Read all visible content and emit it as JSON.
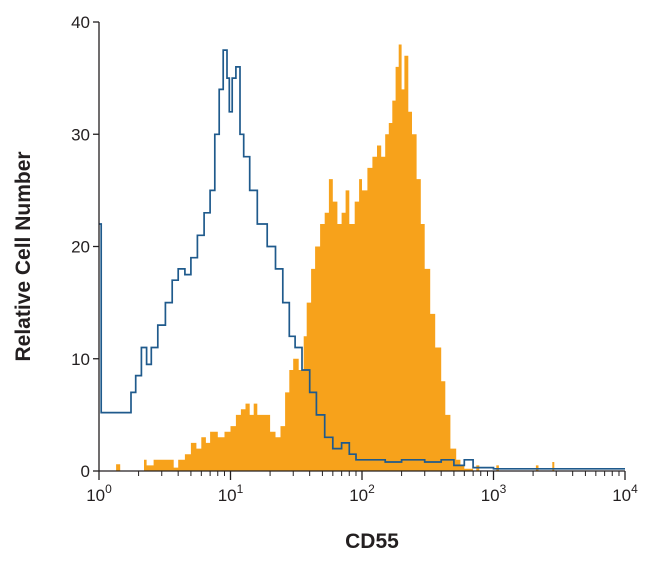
{
  "chart_data": {
    "type": "area",
    "xlabel": "CD55",
    "ylabel": "Relative Cell Number",
    "xscale": "log",
    "xlim": [
      1,
      10000
    ],
    "ylim": [
      0,
      40
    ],
    "grid": false,
    "y_ticks": [
      0,
      10,
      20,
      30,
      40
    ],
    "x_ticks": [
      {
        "base": "10",
        "exp": "0"
      },
      {
        "base": "10",
        "exp": "1"
      },
      {
        "base": "10",
        "exp": "2"
      },
      {
        "base": "10",
        "exp": "3"
      },
      {
        "base": "10",
        "exp": "4"
      }
    ],
    "series": [
      {
        "style": "outline",
        "color": "#1f5a8c",
        "points": [
          [
            1.0,
            22
          ],
          [
            1.04,
            5.2
          ],
          [
            1.6,
            5.2
          ],
          [
            1.75,
            7
          ],
          [
            1.9,
            8.5
          ],
          [
            2.1,
            11
          ],
          [
            2.3,
            9.5
          ],
          [
            2.5,
            11
          ],
          [
            2.8,
            13
          ],
          [
            3.2,
            15
          ],
          [
            3.6,
            17
          ],
          [
            4.0,
            18
          ],
          [
            4.5,
            17.5
          ],
          [
            5.0,
            19
          ],
          [
            5.6,
            21
          ],
          [
            6.3,
            23
          ],
          [
            7.0,
            25
          ],
          [
            7.6,
            30
          ],
          [
            8.2,
            34
          ],
          [
            8.8,
            37.5
          ],
          [
            9.4,
            35
          ],
          [
            9.8,
            32
          ],
          [
            10.3,
            35
          ],
          [
            11.0,
            36
          ],
          [
            11.8,
            30
          ],
          [
            12.6,
            28
          ],
          [
            14.0,
            25
          ],
          [
            16.0,
            22
          ],
          [
            19.0,
            20
          ],
          [
            22.0,
            18
          ],
          [
            25.0,
            15
          ],
          [
            28.0,
            12
          ],
          [
            31.0,
            11
          ],
          [
            35.0,
            9
          ],
          [
            40.0,
            7
          ],
          [
            45.0,
            5
          ],
          [
            52.0,
            3
          ],
          [
            60.0,
            2
          ],
          [
            70.0,
            2.5
          ],
          [
            80.0,
            1.5
          ],
          [
            90.0,
            1
          ],
          [
            110.0,
            1
          ],
          [
            150.0,
            0.8
          ],
          [
            200.0,
            1
          ],
          [
            300.0,
            0.8
          ],
          [
            400.0,
            1
          ],
          [
            500.0,
            0.5
          ],
          [
            600.0,
            1
          ],
          [
            700.0,
            0.3
          ],
          [
            1000.0,
            0.2
          ],
          [
            2000.0,
            0.2
          ],
          [
            10000.0,
            0.2
          ]
        ]
      },
      {
        "style": "filled",
        "color": "#f7a21b",
        "points": [
          [
            1.0,
            0
          ],
          [
            1.3,
            0
          ],
          [
            1.35,
            0.6
          ],
          [
            1.45,
            0
          ],
          [
            2.1,
            0
          ],
          [
            2.2,
            1
          ],
          [
            2.3,
            0.5
          ],
          [
            2.6,
            1
          ],
          [
            2.9,
            1
          ],
          [
            3.3,
            1
          ],
          [
            3.7,
            0.3
          ],
          [
            4.0,
            1
          ],
          [
            4.5,
            1.5
          ],
          [
            5.0,
            2.5
          ],
          [
            5.5,
            2
          ],
          [
            6.0,
            3
          ],
          [
            6.5,
            2.5
          ],
          [
            7.0,
            3.5
          ],
          [
            8.0,
            3
          ],
          [
            9.0,
            3.5
          ],
          [
            10.0,
            4
          ],
          [
            11.0,
            5
          ],
          [
            12.0,
            5.5
          ],
          [
            13.0,
            6
          ],
          [
            14.0,
            5
          ],
          [
            15.0,
            6
          ],
          [
            16.0,
            5
          ],
          [
            18.0,
            5
          ],
          [
            20.0,
            3.5
          ],
          [
            22.0,
            3
          ],
          [
            24.0,
            4
          ],
          [
            26.0,
            7
          ],
          [
            28.0,
            9
          ],
          [
            30.0,
            10
          ],
          [
            33.0,
            9
          ],
          [
            36.0,
            12
          ],
          [
            38.0,
            15
          ],
          [
            41.0,
            18
          ],
          [
            44.0,
            20
          ],
          [
            48.0,
            22
          ],
          [
            52.0,
            23
          ],
          [
            56.0,
            26
          ],
          [
            60.0,
            24
          ],
          [
            65.0,
            22
          ],
          [
            70.0,
            23
          ],
          [
            75.0,
            25
          ],
          [
            80.0,
            22
          ],
          [
            88.0,
            24
          ],
          [
            95.0,
            26
          ],
          [
            100.0,
            25
          ],
          [
            110.0,
            27
          ],
          [
            120.0,
            28
          ],
          [
            130.0,
            29
          ],
          [
            140.0,
            28
          ],
          [
            150.0,
            30
          ],
          [
            160.0,
            31
          ],
          [
            170.0,
            33
          ],
          [
            180.0,
            36
          ],
          [
            190.0,
            38
          ],
          [
            200.0,
            34
          ],
          [
            210.0,
            37
          ],
          [
            225.0,
            32
          ],
          [
            240.0,
            30
          ],
          [
            260.0,
            26
          ],
          [
            280.0,
            22
          ],
          [
            300.0,
            18
          ],
          [
            330.0,
            14
          ],
          [
            360.0,
            11
          ],
          [
            400.0,
            8
          ],
          [
            430.0,
            5
          ],
          [
            470.0,
            2
          ],
          [
            520.0,
            1
          ],
          [
            560.0,
            0.5
          ],
          [
            600.0,
            0.2
          ],
          [
            700.0,
            0
          ],
          [
            740.0,
            0.5
          ],
          [
            780.0,
            0
          ],
          [
            1000.0,
            0
          ],
          [
            1050.0,
            0.5
          ],
          [
            1100.0,
            0
          ],
          [
            2000.0,
            0
          ],
          [
            2100.0,
            0.5
          ],
          [
            2200.0,
            0
          ],
          [
            2700.0,
            0
          ],
          [
            2800.0,
            0.8
          ],
          [
            2900.0,
            0
          ],
          [
            10000.0,
            0
          ]
        ]
      }
    ]
  }
}
